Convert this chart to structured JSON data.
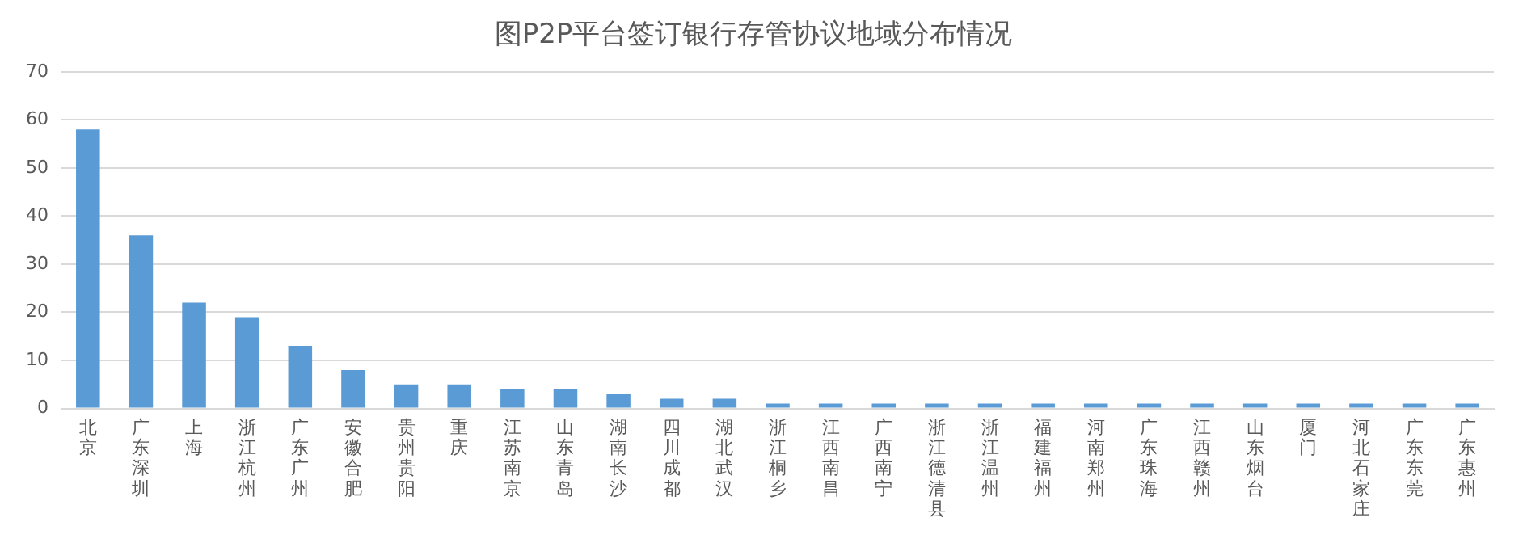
{
  "chart_data": {
    "type": "bar",
    "title": "图P2P平台签订银行存管协议地域分布情况",
    "categories": [
      "北京",
      "广东深圳",
      "上海",
      "浙江杭州",
      "广东广州",
      "安徽合肥",
      "贵州贵阳",
      "重庆",
      "江苏南京",
      "山东青岛",
      "湖南长沙",
      "四川成都",
      "湖北武汉",
      "浙江桐乡",
      "江西南昌",
      "广西南宁",
      "浙江德清县",
      "浙江温州",
      "福建福州",
      "河南郑州",
      "广东珠海",
      "江西赣州",
      "山东烟台",
      "厦门",
      "河北石家庄",
      "广东东莞",
      "广东惠州"
    ],
    "values": [
      58,
      36,
      22,
      19,
      13,
      8,
      5,
      5,
      4,
      4,
      3,
      2,
      2,
      1,
      1,
      1,
      1,
      1,
      1,
      1,
      1,
      1,
      1,
      1,
      1,
      1,
      1
    ],
    "color": "#5b9bd5",
    "ylim": [
      0,
      70
    ],
    "yticks": [
      0,
      10,
      20,
      30,
      40,
      50,
      60,
      70
    ],
    "grid": "y"
  }
}
